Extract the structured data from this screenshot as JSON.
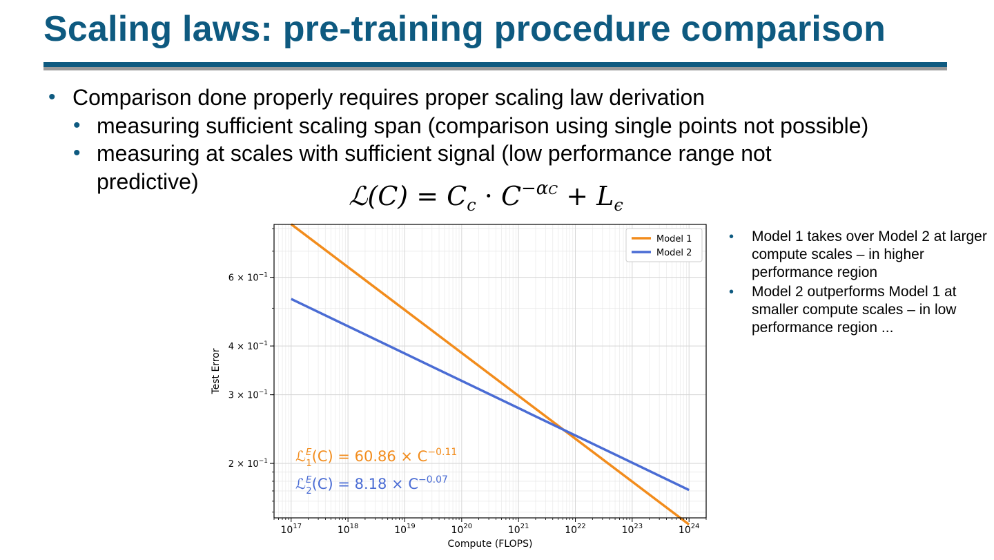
{
  "slide": {
    "title": "Scaling laws: pre-training procedure comparison",
    "bullets": [
      {
        "text": "Comparison done properly requires proper scaling law derivation"
      },
      {
        "text": "measuring sufficient scaling span (comparison using single points not possible)"
      },
      {
        "text": "measuring at scales with sufficient signal (low performance range not"
      },
      {
        "text": "predictive)"
      }
    ],
    "formula": {
      "lhs": "ℒ(C)",
      "eq": "=",
      "c": "C",
      "c_sub": "c",
      "dot": "·",
      "base": "C",
      "exp": "−α",
      "exp_sub": "C",
      "plus": "+",
      "l": "L",
      "l_sub": "ϵ"
    },
    "side_notes": [
      "Model 1 takes over Model 2 at larger compute scales – in higher performance region",
      "Model 2 outperforms Model 1 at smaller compute scales – in low performance region ..."
    ],
    "colors": {
      "title": "#0e5a80",
      "bullet": "#0e5a80",
      "model1": "#f28c1c",
      "model2": "#4a6cd4"
    }
  },
  "chart_data": {
    "type": "line",
    "xscale": "log",
    "yscale": "log",
    "xlabel": "Compute (FLOPS)",
    "ylabel": "Test Error",
    "xlim": [
      5e+16,
      2e+24
    ],
    "ylim": [
      0.145,
      0.82
    ],
    "grid": true,
    "legend": "top-right",
    "x_ticks": [
      {
        "base": "10",
        "exp": "17",
        "value": 1e+17
      },
      {
        "base": "10",
        "exp": "18",
        "value": 1e+18
      },
      {
        "base": "10",
        "exp": "19",
        "value": 1e+19
      },
      {
        "base": "10",
        "exp": "20",
        "value": 1e+20
      },
      {
        "base": "10",
        "exp": "21",
        "value": 1e+21
      },
      {
        "base": "10",
        "exp": "22",
        "value": 1e+22
      },
      {
        "base": "10",
        "exp": "23",
        "value": 1e+23
      },
      {
        "base": "10",
        "exp": "24",
        "value": 1e+24
      }
    ],
    "y_ticks": [
      {
        "mant": "6 × 10",
        "exp": "−1",
        "value": 0.6
      },
      {
        "mant": "4 × 10",
        "exp": "−1",
        "value": 0.4
      },
      {
        "mant": "3 × 10",
        "exp": "−1",
        "value": 0.3
      },
      {
        "mant": "2 × 10",
        "exp": "−1",
        "value": 0.2
      }
    ],
    "series": [
      {
        "name": "Model 1",
        "color": "#f28c1c",
        "coef": 60.86,
        "exponent": -0.11,
        "x": [
          1e+17,
          1e+24
        ]
      },
      {
        "name": "Model 2",
        "color": "#4a6cd4",
        "coef": 8.18,
        "exponent": -0.07,
        "x": [
          1e+17,
          1e+24
        ]
      }
    ],
    "annotations": [
      {
        "series": "Model 1",
        "prefix": "ℒ",
        "sup": "E",
        "sub": "1",
        "body": "(C) = 60.86 × C",
        "exp": "−0.11",
        "color": "#f28c1c"
      },
      {
        "series": "Model 2",
        "prefix": "ℒ",
        "sup": "E",
        "sub": "2",
        "body": "(C) = 8.18 × C",
        "exp": "−0.07",
        "color": "#4a6cd4"
      }
    ]
  }
}
